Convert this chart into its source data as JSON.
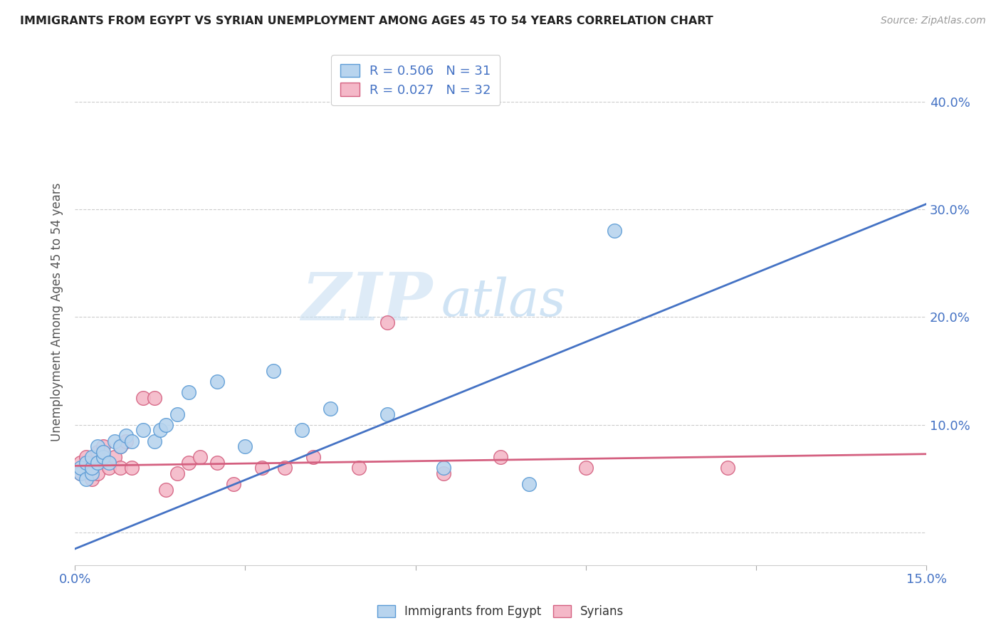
{
  "title": "IMMIGRANTS FROM EGYPT VS SYRIAN UNEMPLOYMENT AMONG AGES 45 TO 54 YEARS CORRELATION CHART",
  "source": "Source: ZipAtlas.com",
  "ylabel": "Unemployment Among Ages 45 to 54 years",
  "xlim": [
    0.0,
    0.15
  ],
  "ylim": [
    -0.03,
    0.44
  ],
  "xticks": [
    0.0,
    0.03,
    0.06,
    0.09,
    0.12,
    0.15
  ],
  "xtick_labels": [
    "0.0%",
    "",
    "",
    "",
    "",
    "15.0%"
  ],
  "ytick_labels": [
    "",
    "10.0%",
    "20.0%",
    "30.0%",
    "40.0%"
  ],
  "yticks": [
    0.0,
    0.1,
    0.2,
    0.3,
    0.4
  ],
  "egypt_color": "#b8d4ee",
  "egypt_edge_color": "#5b9bd5",
  "syria_color": "#f4b8c8",
  "syria_edge_color": "#d46080",
  "egypt_line_color": "#4472c4",
  "syria_line_color": "#d46080",
  "egypt_R": 0.506,
  "egypt_N": 31,
  "syria_R": 0.027,
  "syria_N": 32,
  "egypt_x": [
    0.001,
    0.001,
    0.002,
    0.002,
    0.003,
    0.003,
    0.003,
    0.004,
    0.004,
    0.005,
    0.005,
    0.006,
    0.007,
    0.008,
    0.009,
    0.01,
    0.012,
    0.014,
    0.015,
    0.016,
    0.018,
    0.02,
    0.025,
    0.03,
    0.035,
    0.04,
    0.045,
    0.055,
    0.065,
    0.08,
    0.095
  ],
  "egypt_y": [
    0.055,
    0.06,
    0.05,
    0.065,
    0.055,
    0.06,
    0.07,
    0.065,
    0.08,
    0.07,
    0.075,
    0.065,
    0.085,
    0.08,
    0.09,
    0.085,
    0.095,
    0.085,
    0.095,
    0.1,
    0.11,
    0.13,
    0.14,
    0.08,
    0.15,
    0.095,
    0.115,
    0.11,
    0.06,
    0.045,
    0.28
  ],
  "syria_x": [
    0.001,
    0.001,
    0.002,
    0.002,
    0.003,
    0.003,
    0.004,
    0.004,
    0.005,
    0.006,
    0.007,
    0.008,
    0.008,
    0.009,
    0.01,
    0.012,
    0.014,
    0.016,
    0.018,
    0.02,
    0.022,
    0.025,
    0.028,
    0.033,
    0.037,
    0.042,
    0.05,
    0.055,
    0.065,
    0.075,
    0.09,
    0.115
  ],
  "syria_y": [
    0.055,
    0.065,
    0.06,
    0.07,
    0.05,
    0.065,
    0.075,
    0.055,
    0.08,
    0.06,
    0.07,
    0.08,
    0.06,
    0.085,
    0.06,
    0.125,
    0.125,
    0.04,
    0.055,
    0.065,
    0.07,
    0.065,
    0.045,
    0.06,
    0.06,
    0.07,
    0.06,
    0.195,
    0.055,
    0.07,
    0.06,
    0.06
  ],
  "egypt_line_x0": 0.0,
  "egypt_line_y0": -0.015,
  "egypt_line_x1": 0.15,
  "egypt_line_y1": 0.305,
  "syria_line_x0": 0.0,
  "syria_line_y0": 0.062,
  "syria_line_x1": 0.15,
  "syria_line_y1": 0.073,
  "watermark_zip": "ZIP",
  "watermark_atlas": "atlas",
  "legend_label_egypt": "Immigrants from Egypt",
  "legend_label_syria": "Syrians",
  "background_color": "#ffffff",
  "grid_color": "#cccccc"
}
